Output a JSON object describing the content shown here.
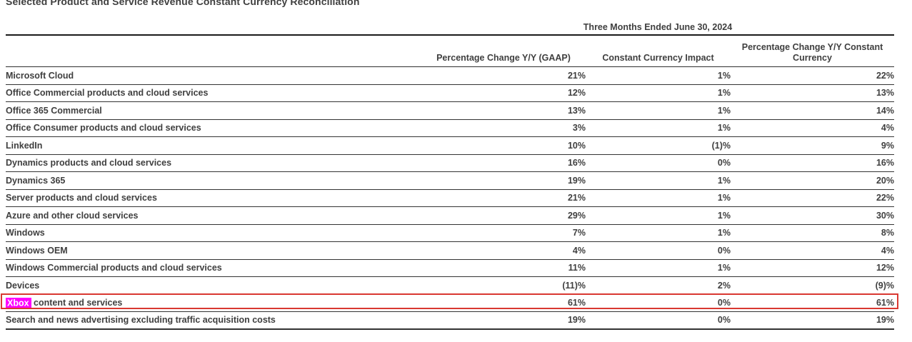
{
  "title": "Selected Product and Service Revenue Constant Currency Reconciliation",
  "colors": {
    "text": "#3f3f3f",
    "search_highlight_bg": "#ff00ff",
    "search_highlight_text": "#ffffff",
    "result_box_border": "#d93831"
  },
  "search": {
    "highlighted_term": "Xbox"
  },
  "table": {
    "period_header": "Three Months Ended June 30, 2024",
    "columns": [
      "Percentage Change Y/Y (GAAP)",
      "Constant Currency Impact",
      "Percentage Change Y/Y Constant Currency"
    ],
    "rows": [
      {
        "label": "Microsoft Cloud",
        "gaap": "21%",
        "impact": "1%",
        "constant_currency": "22%",
        "highlighted": false
      },
      {
        "label": "Office Commercial products and cloud services",
        "gaap": "12%",
        "impact": "1%",
        "constant_currency": "13%",
        "highlighted": false
      },
      {
        "label": "Office 365 Commercial",
        "gaap": "13%",
        "impact": "1%",
        "constant_currency": "14%",
        "highlighted": false
      },
      {
        "label": "Office Consumer products and cloud services",
        "gaap": "3%",
        "impact": "1%",
        "constant_currency": "4%",
        "highlighted": false
      },
      {
        "label": "LinkedIn",
        "gaap": "10%",
        "impact": "(1)%",
        "constant_currency": "9%",
        "highlighted": false
      },
      {
        "label": "Dynamics products and cloud services",
        "gaap": "16%",
        "impact": "0%",
        "constant_currency": "16%",
        "highlighted": false
      },
      {
        "label": "Dynamics 365",
        "gaap": "19%",
        "impact": "1%",
        "constant_currency": "20%",
        "highlighted": false
      },
      {
        "label": "Server products and cloud services",
        "gaap": "21%",
        "impact": "1%",
        "constant_currency": "22%",
        "highlighted": false
      },
      {
        "label": "Azure and other cloud services",
        "gaap": "29%",
        "impact": "1%",
        "constant_currency": "30%",
        "highlighted": false
      },
      {
        "label": "Windows",
        "gaap": "7%",
        "impact": "1%",
        "constant_currency": "8%",
        "highlighted": false
      },
      {
        "label": "Windows OEM",
        "gaap": "4%",
        "impact": "0%",
        "constant_currency": "4%",
        "highlighted": false
      },
      {
        "label": "Windows Commercial products and cloud services",
        "gaap": "11%",
        "impact": "1%",
        "constant_currency": "12%",
        "highlighted": false
      },
      {
        "label": "Devices",
        "gaap": "(11)%",
        "impact": "2%",
        "constant_currency": "(9)%",
        "highlighted": false
      },
      {
        "label": "Xbox content and services",
        "gaap": "61%",
        "impact": "0%",
        "constant_currency": "61%",
        "highlighted": true
      },
      {
        "label": "Search and news advertising excluding traffic acquisition costs",
        "gaap": "19%",
        "impact": "0%",
        "constant_currency": "19%",
        "highlighted": false
      }
    ]
  }
}
